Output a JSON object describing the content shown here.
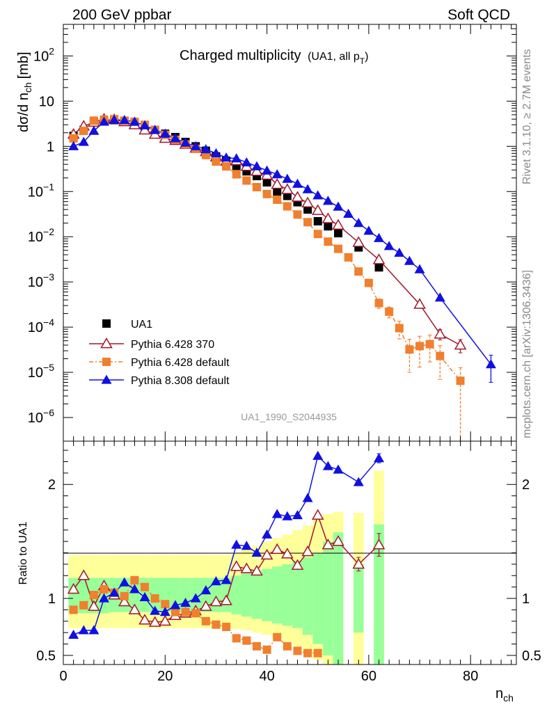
{
  "header": {
    "left": "200 GeV ppbar",
    "right": "Soft QCD"
  },
  "side_labels": {
    "version": "Rivet 3.1.10, ≥ 2.7M events",
    "source": "mcplots.cern.ch [arXiv:1306.3436]"
  },
  "chart_data": [
    {
      "panel": "main",
      "type": "scatter",
      "title": "Charged multiplicity",
      "title_note": "(UA1, all p",
      "title_note_sub": "T",
      "title_note_end": ")",
      "ylabel": "dσ/d n",
      "ylabel_sub": "ch",
      "ylabel_unit": "[mb]",
      "watermark": "UA1_1990_S2044935",
      "yscale": "log",
      "xlim": [
        0,
        89
      ],
      "ylim": [
        3e-07,
        500
      ],
      "legend_position": "lower-left",
      "series": [
        {
          "name": "UA1",
          "color": "#000000",
          "marker": "square-filled",
          "x": [
            2,
            4,
            6,
            8,
            10,
            12,
            14,
            16,
            18,
            20,
            22,
            24,
            26,
            28,
            30,
            32,
            34,
            36,
            38,
            40,
            42,
            44,
            46,
            48,
            50,
            52,
            54,
            58,
            62
          ],
          "y": [
            1.7,
            2.3,
            3.6,
            3.6,
            3.8,
            3.6,
            3.3,
            2.8,
            2.3,
            1.9,
            1.6,
            1.25,
            1.0,
            0.8,
            0.6,
            0.48,
            0.37,
            0.28,
            0.22,
            0.16,
            0.1,
            0.08,
            0.058,
            0.04,
            0.022,
            0.017,
            0.012,
            0.0058,
            0.0021
          ]
        },
        {
          "name": "Pythia 6.428 370",
          "color": "#a0162a",
          "marker": "triangle-open",
          "line": "solid",
          "x": [
            2,
            4,
            6,
            8,
            10,
            12,
            14,
            16,
            18,
            20,
            22,
            24,
            26,
            28,
            30,
            32,
            34,
            36,
            38,
            40,
            42,
            44,
            46,
            48,
            50,
            52,
            54,
            58,
            62,
            70,
            74,
            78
          ],
          "y": [
            1.85,
            2.8,
            3.4,
            4.0,
            3.9,
            3.5,
            3.0,
            2.3,
            1.85,
            1.5,
            1.35,
            1.1,
            0.91,
            0.76,
            0.58,
            0.47,
            0.48,
            0.36,
            0.28,
            0.23,
            0.144,
            0.111,
            0.075,
            0.056,
            0.038,
            0.025,
            0.018,
            0.0075,
            0.0031,
            0.00032,
            7e-05,
            4e-05
          ],
          "y_err": [
            0,
            0,
            0,
            0,
            0,
            0,
            0,
            0,
            0,
            0,
            0,
            0,
            0,
            0,
            0,
            0,
            0,
            0,
            0,
            0,
            0,
            0,
            0,
            0,
            0,
            0,
            0,
            0,
            0,
            0,
            1.8e-05,
            1.3e-05
          ]
        },
        {
          "name": "Pythia 6.428 default",
          "color": "#f07f2e",
          "marker": "square-filled",
          "line": "dash-dot",
          "x": [
            2,
            4,
            6,
            8,
            10,
            12,
            14,
            16,
            18,
            20,
            22,
            24,
            26,
            28,
            30,
            32,
            34,
            36,
            38,
            40,
            42,
            44,
            46,
            48,
            50,
            52,
            54,
            56,
            58,
            60,
            62,
            64,
            66,
            68,
            70,
            72,
            74,
            78
          ],
          "y": [
            1.5,
            2.2,
            3.7,
            3.9,
            4.0,
            3.7,
            3.5,
            3.0,
            2.3,
            1.8,
            1.4,
            1.1,
            0.88,
            0.64,
            0.46,
            0.36,
            0.24,
            0.175,
            0.125,
            0.088,
            0.066,
            0.047,
            0.031,
            0.021,
            0.0115,
            0.0078,
            0.0054,
            0.0035,
            0.0017,
            0.00095,
            0.00034,
            0.00022,
            9.5e-05,
            3.2e-05,
            3.8e-05,
            4.2e-05,
            2.3e-05,
            6.5e-06
          ],
          "y_err": [
            0,
            0,
            0,
            0,
            0,
            0,
            0,
            0,
            0,
            0,
            0,
            0,
            0,
            0,
            0,
            0,
            0,
            0,
            0,
            0,
            0,
            0,
            0,
            0,
            0,
            0,
            0,
            0,
            0,
            0,
            8e-05,
            6e-05,
            4e-05,
            2.2e-05,
            2.5e-05,
            2.5e-05,
            1.6e-05,
            6.2e-06
          ]
        },
        {
          "name": "Pythia 8.308 default",
          "color": "#1010e0",
          "marker": "triangle-filled",
          "line": "solid",
          "x": [
            2,
            4,
            6,
            8,
            10,
            12,
            14,
            16,
            18,
            20,
            22,
            24,
            26,
            28,
            30,
            32,
            34,
            36,
            38,
            40,
            42,
            44,
            46,
            48,
            50,
            52,
            54,
            56,
            58,
            60,
            62,
            64,
            66,
            68,
            70,
            74,
            84
          ],
          "y": [
            1.0,
            1.25,
            2.2,
            3.5,
            3.85,
            3.8,
            3.5,
            2.9,
            2.3,
            1.9,
            1.5,
            1.2,
            1.0,
            0.86,
            0.7,
            0.56,
            0.54,
            0.44,
            0.36,
            0.29,
            0.24,
            0.19,
            0.148,
            0.112,
            0.082,
            0.062,
            0.046,
            0.032,
            0.02,
            0.0135,
            0.0093,
            0.0062,
            0.0044,
            0.0029,
            0.0019,
            0.00045,
            1.5e-05
          ],
          "y_err": [
            0,
            0,
            0,
            0,
            0,
            0,
            0,
            0,
            0,
            0,
            0,
            0,
            0,
            0,
            0,
            0,
            0,
            0,
            0,
            0,
            0,
            0,
            0,
            0,
            0,
            0,
            0,
            0,
            0,
            0,
            0,
            0,
            0,
            0,
            0,
            0,
            9e-06
          ]
        }
      ]
    },
    {
      "panel": "ratio",
      "type": "line",
      "ylabel": "Ratio to UA1",
      "xlabel": "n",
      "xlabel_sub": "ch",
      "xlim": [
        0,
        89
      ],
      "ylim": [
        0.42,
        2.38
      ],
      "x_ticks": [
        "0",
        "20",
        "40",
        "60",
        "80"
      ],
      "y_ticks": [
        "0.5",
        "1",
        "2"
      ],
      "uncertainty_bands": [
        {
          "x": [
            1,
            55
          ],
          "yellow_inner": [
            1.32,
            1.33,
            1.33,
            1.34,
            1.34,
            1.35,
            1.35,
            1.36,
            1.37,
            1.4,
            1.45,
            1.55,
            1.6,
            1.62
          ],
          "green": "varies"
        }
      ],
      "bands_x": [
        1,
        3,
        5,
        7,
        9,
        11,
        13,
        15,
        17,
        19,
        21,
        23,
        25,
        27,
        29,
        31,
        33,
        35,
        37,
        39,
        41,
        43,
        45,
        47,
        49,
        51,
        53,
        57,
        61
      ],
      "bands_x_hi": [
        3,
        5,
        7,
        9,
        11,
        13,
        15,
        17,
        19,
        21,
        23,
        25,
        27,
        29,
        31,
        33,
        35,
        37,
        39,
        41,
        43,
        45,
        47,
        49,
        51,
        53,
        55,
        59,
        63
      ],
      "green_lo": [
        0.87,
        0.87,
        0.87,
        0.87,
        0.88,
        0.88,
        0.88,
        0.88,
        0.88,
        0.88,
        0.88,
        0.88,
        0.88,
        0.88,
        0.88,
        0.88,
        0.86,
        0.84,
        0.82,
        0.8,
        0.78,
        0.76,
        0.74,
        0.68,
        0.6,
        0.5,
        0.42,
        0.7,
        0.42
      ],
      "green_hi": [
        1.18,
        1.18,
        1.18,
        1.18,
        1.18,
        1.18,
        1.18,
        1.18,
        1.18,
        1.18,
        1.18,
        1.18,
        1.18,
        1.18,
        1.18,
        1.18,
        1.2,
        1.22,
        1.24,
        1.26,
        1.28,
        1.3,
        1.33,
        1.36,
        1.4,
        1.5,
        1.58,
        1.3,
        1.65
      ],
      "yellow_lo": [
        0.74,
        0.74,
        0.74,
        0.74,
        0.74,
        0.74,
        0.74,
        0.74,
        0.74,
        0.74,
        0.74,
        0.74,
        0.74,
        0.74,
        0.74,
        0.74,
        0.73,
        0.72,
        0.7,
        0.68,
        0.65,
        0.62,
        0.58,
        0.52,
        0.46,
        0.42,
        0.42,
        0.42,
        0.42
      ],
      "yellow_hi": [
        1.38,
        1.38,
        1.38,
        1.38,
        1.38,
        1.38,
        1.38,
        1.38,
        1.38,
        1.38,
        1.38,
        1.38,
        1.38,
        1.38,
        1.38,
        1.38,
        1.4,
        1.43,
        1.46,
        1.5,
        1.53,
        1.56,
        1.6,
        1.64,
        1.7,
        1.74,
        1.76,
        1.75,
        2.12
      ],
      "series": [
        {
          "name": "Pythia 6.428 370",
          "color": "#a0162a",
          "marker": "triangle-open",
          "line": "solid",
          "x": [
            2,
            4,
            6,
            8,
            10,
            12,
            14,
            16,
            18,
            20,
            22,
            24,
            26,
            28,
            30,
            32,
            34,
            36,
            38,
            40,
            42,
            44,
            46,
            48,
            50,
            52,
            54,
            58,
            62
          ],
          "y": [
            1.08,
            1.2,
            0.93,
            1.11,
            1.03,
            0.97,
            0.9,
            0.81,
            0.79,
            0.8,
            0.85,
            0.87,
            0.89,
            0.93,
            0.97,
            0.98,
            1.28,
            1.26,
            1.24,
            1.38,
            1.43,
            1.39,
            1.29,
            1.41,
            1.73,
            1.47,
            1.5,
            1.3,
            1.47
          ],
          "y_err": [
            0,
            0,
            0,
            0,
            0,
            0,
            0,
            0,
            0,
            0,
            0,
            0,
            0,
            0,
            0,
            0,
            0,
            0,
            0,
            0,
            0,
            0,
            0,
            0,
            0,
            0,
            0,
            0.06,
            0.1
          ]
        },
        {
          "name": "Pythia 6.428 default",
          "color": "#f07f2e",
          "marker": "square-filled",
          "line": "dash-dot",
          "x": [
            2,
            4,
            6,
            8,
            10,
            12,
            14,
            16,
            18,
            20,
            22,
            24,
            26,
            28,
            30,
            32,
            34,
            36,
            38,
            40,
            42,
            44,
            46,
            48,
            50
          ],
          "y": [
            0.9,
            0.94,
            1.03,
            1.08,
            1.05,
            1.02,
            1.16,
            1.1,
            1.0,
            0.95,
            0.88,
            0.88,
            0.87,
            0.8,
            0.77,
            0.75,
            0.65,
            0.63,
            0.58,
            0.55,
            0.66,
            0.58,
            0.54,
            0.52,
            0.52
          ],
          "y_err": [
            0,
            0,
            0,
            0,
            0,
            0,
            0,
            0,
            0,
            0,
            0,
            0,
            0,
            0,
            0,
            0,
            0,
            0,
            0,
            0,
            0,
            0,
            0,
            0,
            0.02
          ]
        },
        {
          "name": "Pythia 8.308 default",
          "color": "#1010e0",
          "marker": "triangle-filled",
          "line": "solid",
          "x": [
            2,
            4,
            6,
            8,
            10,
            12,
            14,
            16,
            18,
            20,
            22,
            24,
            26,
            28,
            30,
            32,
            34,
            36,
            38,
            40,
            42,
            44,
            46,
            48,
            50,
            52,
            54,
            58,
            62
          ],
          "y": [
            0.68,
            0.72,
            0.72,
            1.0,
            1.05,
            1.14,
            1.08,
            1.01,
            0.89,
            0.88,
            0.94,
            0.96,
            1.0,
            1.07,
            1.15,
            1.16,
            1.47,
            1.46,
            1.4,
            1.56,
            1.74,
            1.72,
            1.73,
            1.88,
            2.25,
            2.16,
            2.13,
            2.02,
            2.23
          ],
          "y_err": [
            0,
            0,
            0,
            0,
            0,
            0,
            0,
            0,
            0,
            0,
            0,
            0,
            0,
            0,
            0,
            0,
            0,
            0,
            0,
            0,
            0,
            0,
            0,
            0,
            0,
            0,
            0,
            0,
            0.04
          ]
        }
      ]
    }
  ],
  "axis_ticks_main": {
    "y_labels": [
      {
        "base": "10",
        "exp": "2",
        "v": 100
      },
      {
        "base": "10",
        "exp": "",
        "v": 10
      },
      {
        "base": "1",
        "exp": "",
        "v": 1
      },
      {
        "base": "10",
        "exp": "−1",
        "v": 0.1
      },
      {
        "base": "10",
        "exp": "−2",
        "v": 0.01
      },
      {
        "base": "10",
        "exp": "−3",
        "v": 0.001
      },
      {
        "base": "10",
        "exp": "−4",
        "v": 0.0001
      },
      {
        "base": "10",
        "exp": "−5",
        "v": 1e-05
      },
      {
        "base": "10",
        "exp": "−6",
        "v": 1e-06
      }
    ]
  },
  "legend": [
    {
      "label": "UA1"
    },
    {
      "label": "Pythia 6.428 370"
    },
    {
      "label": "Pythia 6.428 default"
    },
    {
      "label": "Pythia 8.308 default"
    }
  ]
}
